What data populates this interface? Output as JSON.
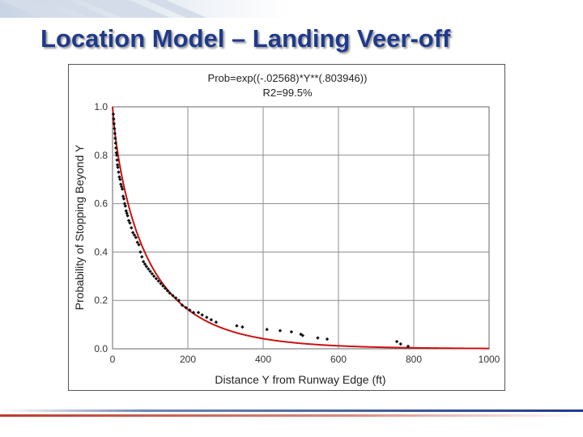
{
  "slide": {
    "title": "Location Model – Landing Veer-off"
  },
  "colors": {
    "title": "#1f3a8c",
    "fit_line": "#cc1111",
    "points": "#111111",
    "grid": "#8c8c8c",
    "bottom_rule_blue": "#1f3a8c",
    "bottom_rule_red": "#c0392b"
  },
  "chart_data": {
    "type": "scatter",
    "title": "Prob=exp((-.02568)*Y**(.803946))",
    "subtitle": "R2=99.5%",
    "xlabel": "Distance Y from Runway Edge (ft)",
    "ylabel": "Probability of Stopping Beyond Y",
    "xlim": [
      0,
      1000
    ],
    "ylim": [
      0,
      1.0
    ],
    "xticks": [
      "0",
      "200",
      "400",
      "600",
      "800",
      "1000"
    ],
    "yticks": [
      "0.0",
      "0.2",
      "0.4",
      "0.6",
      "0.8",
      "1.0"
    ],
    "grid": true,
    "fit": {
      "a": -0.02568,
      "b": 0.803946,
      "x_range": [
        0,
        1000
      ]
    },
    "points": [
      [
        2,
        0.97
      ],
      [
        3,
        0.95
      ],
      [
        4,
        0.93
      ],
      [
        5,
        0.91
      ],
      [
        6,
        0.89
      ],
      [
        7,
        0.87
      ],
      [
        8,
        0.85
      ],
      [
        9,
        0.83
      ],
      [
        10,
        0.81
      ],
      [
        11,
        0.8
      ],
      [
        12,
        0.78
      ],
      [
        13,
        0.76
      ],
      [
        14,
        0.75
      ],
      [
        16,
        0.73
      ],
      [
        18,
        0.71
      ],
      [
        20,
        0.7
      ],
      [
        22,
        0.68
      ],
      [
        24,
        0.67
      ],
      [
        26,
        0.66
      ],
      [
        28,
        0.63
      ],
      [
        30,
        0.62
      ],
      [
        32,
        0.6
      ],
      [
        34,
        0.59
      ],
      [
        36,
        0.57
      ],
      [
        38,
        0.56
      ],
      [
        40,
        0.55
      ],
      [
        43,
        0.53
      ],
      [
        46,
        0.52
      ],
      [
        50,
        0.5
      ],
      [
        54,
        0.48
      ],
      [
        58,
        0.47
      ],
      [
        62,
        0.46
      ],
      [
        66,
        0.44
      ],
      [
        70,
        0.43
      ],
      [
        74,
        0.4
      ],
      [
        78,
        0.38
      ],
      [
        82,
        0.36
      ],
      [
        86,
        0.35
      ],
      [
        90,
        0.34
      ],
      [
        95,
        0.33
      ],
      [
        100,
        0.32
      ],
      [
        105,
        0.31
      ],
      [
        110,
        0.3
      ],
      [
        116,
        0.29
      ],
      [
        122,
        0.28
      ],
      [
        128,
        0.27
      ],
      [
        134,
        0.26
      ],
      [
        140,
        0.25
      ],
      [
        146,
        0.24
      ],
      [
        152,
        0.23
      ],
      [
        160,
        0.22
      ],
      [
        168,
        0.21
      ],
      [
        176,
        0.2
      ],
      [
        185,
        0.18
      ],
      [
        195,
        0.17
      ],
      [
        205,
        0.16
      ],
      [
        215,
        0.15
      ],
      [
        228,
        0.15
      ],
      [
        238,
        0.14
      ],
      [
        250,
        0.13
      ],
      [
        262,
        0.12
      ],
      [
        275,
        0.11
      ],
      [
        330,
        0.095
      ],
      [
        345,
        0.09
      ],
      [
        410,
        0.08
      ],
      [
        445,
        0.075
      ],
      [
        475,
        0.07
      ],
      [
        500,
        0.06
      ],
      [
        505,
        0.055
      ],
      [
        545,
        0.045
      ],
      [
        570,
        0.04
      ],
      [
        755,
        0.03
      ],
      [
        765,
        0.02
      ],
      [
        785,
        0.01
      ]
    ]
  }
}
